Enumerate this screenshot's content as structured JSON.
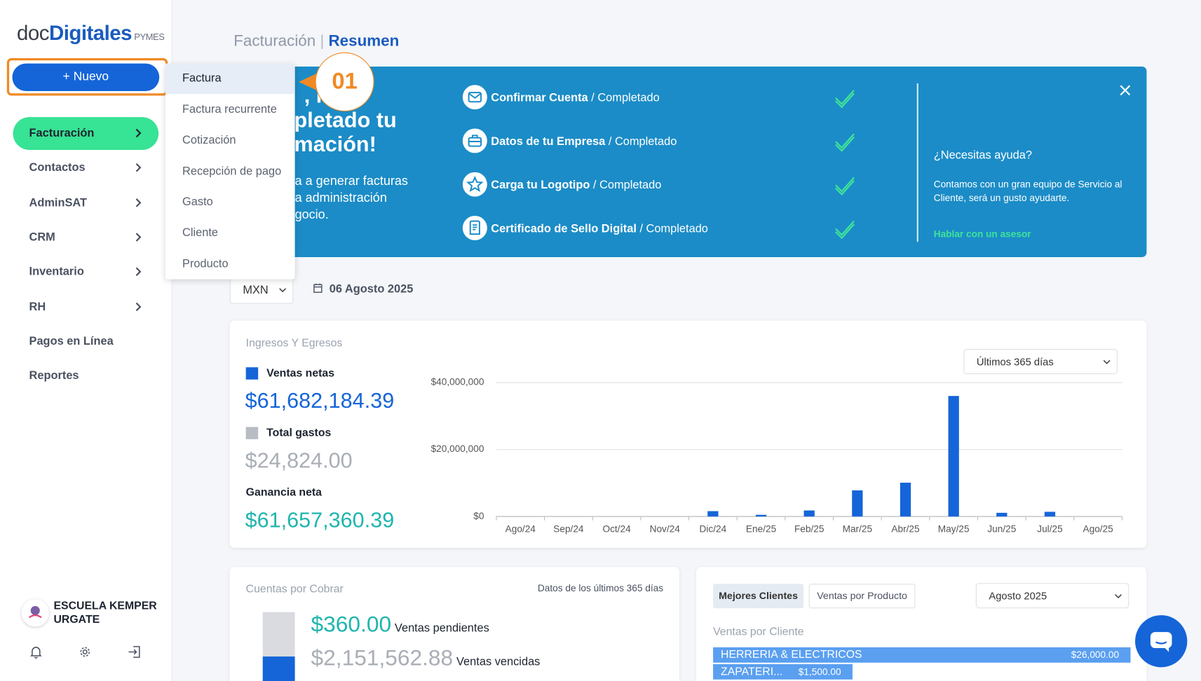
{
  "logo": {
    "prefix": "doc",
    "brand": "Digitales",
    "suffix": "PYMES"
  },
  "new_button": "+ Nuevo",
  "sidebar": {
    "items": [
      "Facturación",
      "Contactos",
      "AdminSAT",
      "CRM",
      "Inventario",
      "RH",
      "Pagos en Línea",
      "Reportes"
    ],
    "user": {
      "line1": "ESCUELA KEMPER",
      "line2": "URGATE"
    }
  },
  "new_menu": {
    "items": [
      "Factura",
      "Factura recurrente",
      "Cotización",
      "Recepción de pago",
      "Gasto",
      "Cliente",
      "Producto"
    ]
  },
  "step_badge": "01",
  "breadcrumb": {
    "section": "Facturación",
    "separator": "|",
    "page": "Resumen"
  },
  "banner": {
    "heading_lines": [
      ", ha",
      "pletado tu",
      "mación!"
    ],
    "body_lines": [
      "a a generar facturas",
      "a administración",
      "gocio."
    ],
    "steps": [
      {
        "name": "Confirmar Cuenta",
        "status": "/ Completado"
      },
      {
        "name": "Datos de tu Empresa",
        "status": "/ Completado"
      },
      {
        "name": "Carga tu Logotipo",
        "status": "/ Completado"
      },
      {
        "name": "Certificado de Sello Digital",
        "status": "/ Completado"
      }
    ],
    "help": {
      "title": "¿Necesitas ayuda?",
      "text_lines": [
        "Contamos con un gran equipo de Servicio al",
        "Cliente, será un gusto ayudarte."
      ],
      "link": "Hablar con un asesor"
    }
  },
  "filters": {
    "currency": "MXN",
    "date": "06 Agosto 2025"
  },
  "income_card": {
    "title": "Ingresos Y Egresos",
    "range": "Últimos 365 días",
    "kpis": [
      {
        "label": "Ventas netas",
        "value": "$61,682,184.39"
      },
      {
        "label": "Total gastos",
        "value": "$24,824.00"
      },
      {
        "label": "Ganancia neta",
        "value": "$61,657,360.39"
      }
    ]
  },
  "chart_data": {
    "type": "bar",
    "categories": [
      "Ago/24",
      "Sep/24",
      "Oct/24",
      "Nov/24",
      "Dic/24",
      "Ene/25",
      "Feb/25",
      "Mar/25",
      "Abr/25",
      "May/25",
      "Jun/25",
      "Jul/25",
      "Ago/25"
    ],
    "values": [
      0,
      0,
      0,
      0,
      1600000,
      500000,
      1800000,
      7800000,
      10100000,
      36000000,
      1100000,
      1400000,
      0
    ],
    "color": "#1565d8",
    "ylim": [
      0,
      40000000
    ],
    "yticks": [
      {
        "value": 0,
        "label": "$0"
      },
      {
        "value": 20000000,
        "label": "$20,000,000"
      },
      {
        "value": 40000000,
        "label": "$40,000,000"
      }
    ],
    "grid": true
  },
  "receivables_card": {
    "title": "Cuentas por Cobrar",
    "note": "Datos de los últimos 365 días",
    "items": [
      {
        "amount": "$360.00",
        "label": "Ventas pendientes"
      },
      {
        "amount": "$2,151,562.88",
        "label": "Ventas vencidas"
      }
    ]
  },
  "clients_card": {
    "tabs": [
      "Mejores Clientes",
      "Ventas por Producto"
    ],
    "period": "Agosto 2025",
    "subtitle": "Ventas por Cliente",
    "rows": [
      {
        "name": "HERRERIA & ELECTRICOS",
        "amount": "$26,000.00"
      },
      {
        "name": "ZAPATERI...",
        "amount": "$1,500.00"
      }
    ]
  }
}
